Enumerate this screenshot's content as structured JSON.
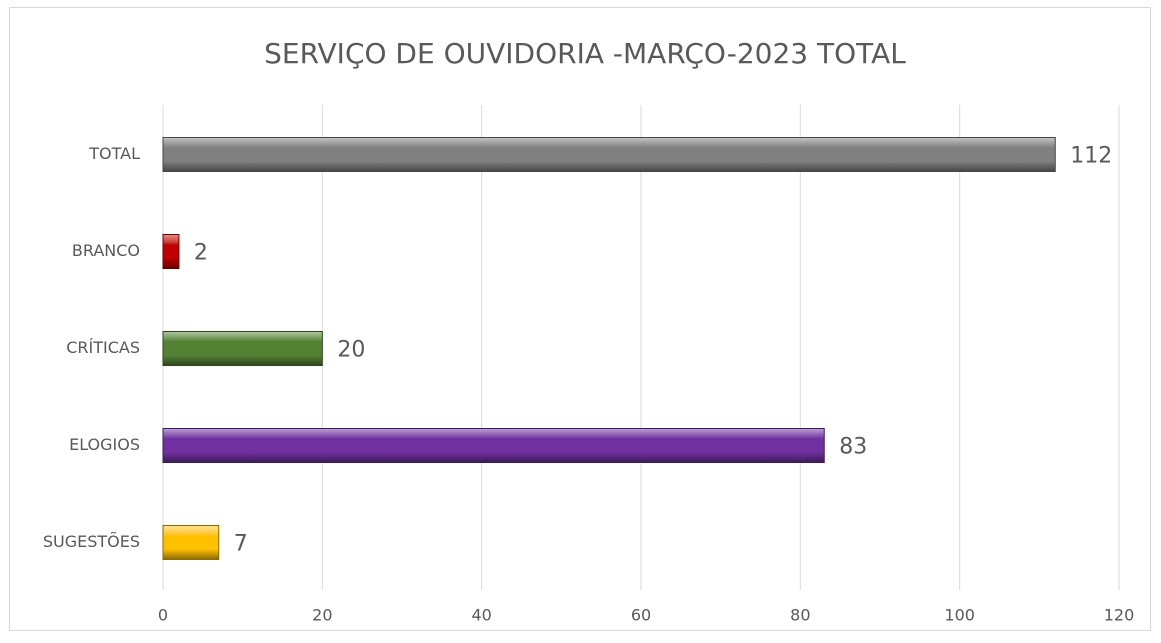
{
  "chart_data": {
    "type": "barh",
    "title": "SERVIÇO DE OUVIDORIA -MARÇO-2023 TOTAL",
    "categories": [
      "TOTAL",
      "BRANCO",
      "CRÍTICAS",
      "ELOGIOS",
      "SUGESTÕES"
    ],
    "values": [
      112,
      2,
      20,
      83,
      7
    ],
    "colors": [
      "#808080",
      "#c00000",
      "#548235",
      "#7030a0",
      "#ffc000"
    ],
    "xlim": [
      0,
      120
    ],
    "xticks": [
      0,
      20,
      40,
      60,
      80,
      100,
      120
    ],
    "grid": true
  }
}
